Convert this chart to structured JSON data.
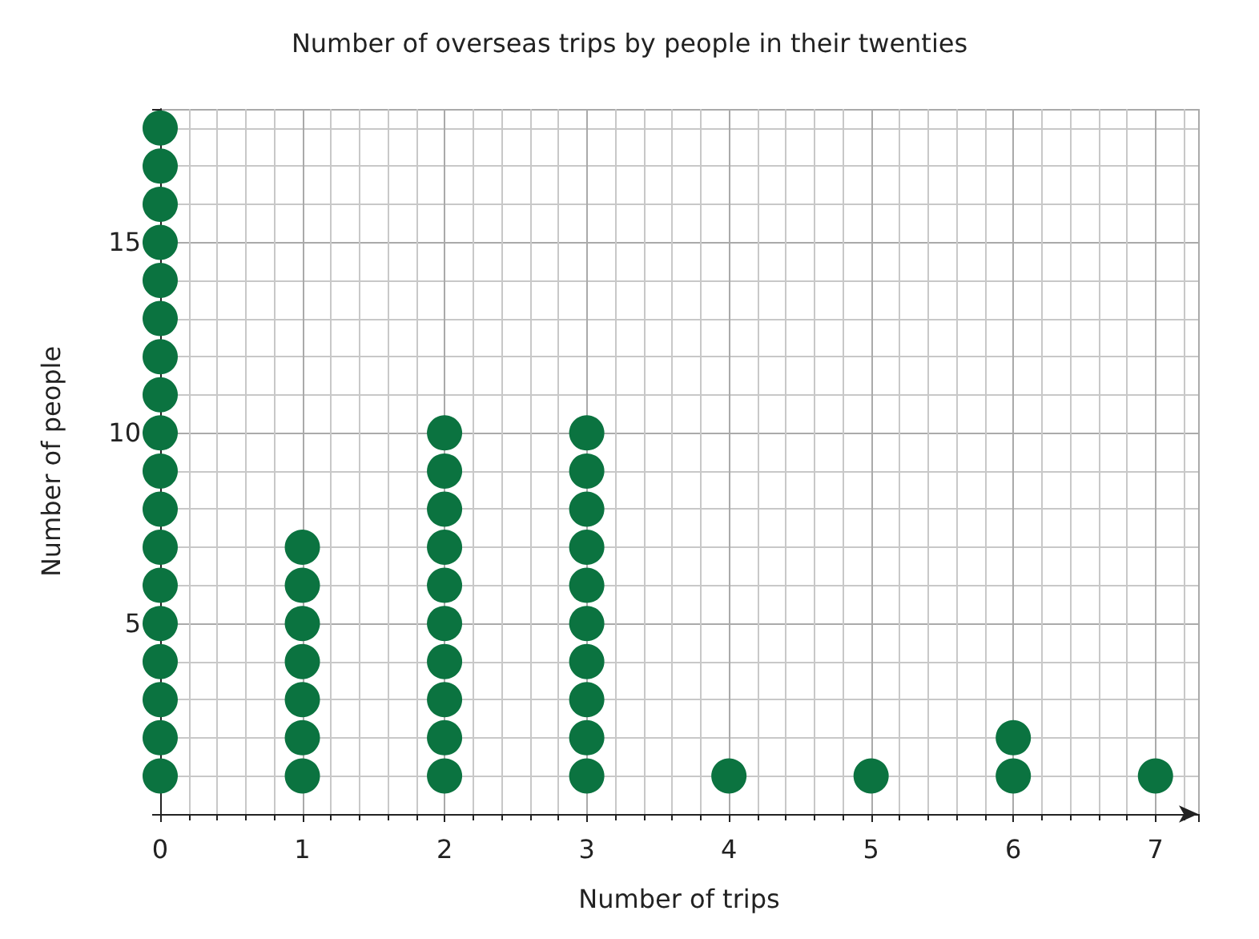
{
  "chart_data": {
    "type": "scatter",
    "title": "Number of overseas trips by people in their twenties",
    "xlabel": "Number of trips",
    "ylabel": "Number of people",
    "series": [
      {
        "color": "#0b7340",
        "x": [
          0,
          0,
          0,
          0,
          0,
          0,
          0,
          0,
          0,
          0,
          0,
          0,
          0,
          0,
          0,
          0,
          0,
          0,
          1,
          1,
          1,
          1,
          1,
          1,
          1,
          2,
          2,
          2,
          2,
          2,
          2,
          2,
          2,
          2,
          2,
          3,
          3,
          3,
          3,
          3,
          3,
          3,
          3,
          3,
          3,
          4,
          5,
          6,
          6,
          7
        ],
        "values": [
          1,
          2,
          3,
          4,
          5,
          6,
          7,
          8,
          9,
          10,
          11,
          12,
          13,
          14,
          15,
          16,
          17,
          18,
          1,
          2,
          3,
          4,
          5,
          6,
          7,
          1,
          2,
          3,
          4,
          5,
          6,
          7,
          8,
          9,
          10,
          1,
          2,
          3,
          4,
          5,
          6,
          7,
          8,
          9,
          10,
          1,
          1,
          1,
          2,
          1
        ]
      }
    ],
    "xlim": [
      0,
      7.3
    ],
    "xticks": [
      0,
      1,
      2,
      3,
      4,
      5,
      6,
      7
    ],
    "ylim": [
      0,
      18.5
    ],
    "yticks": [
      5,
      10,
      15
    ],
    "grid": true,
    "marker": "circle"
  }
}
